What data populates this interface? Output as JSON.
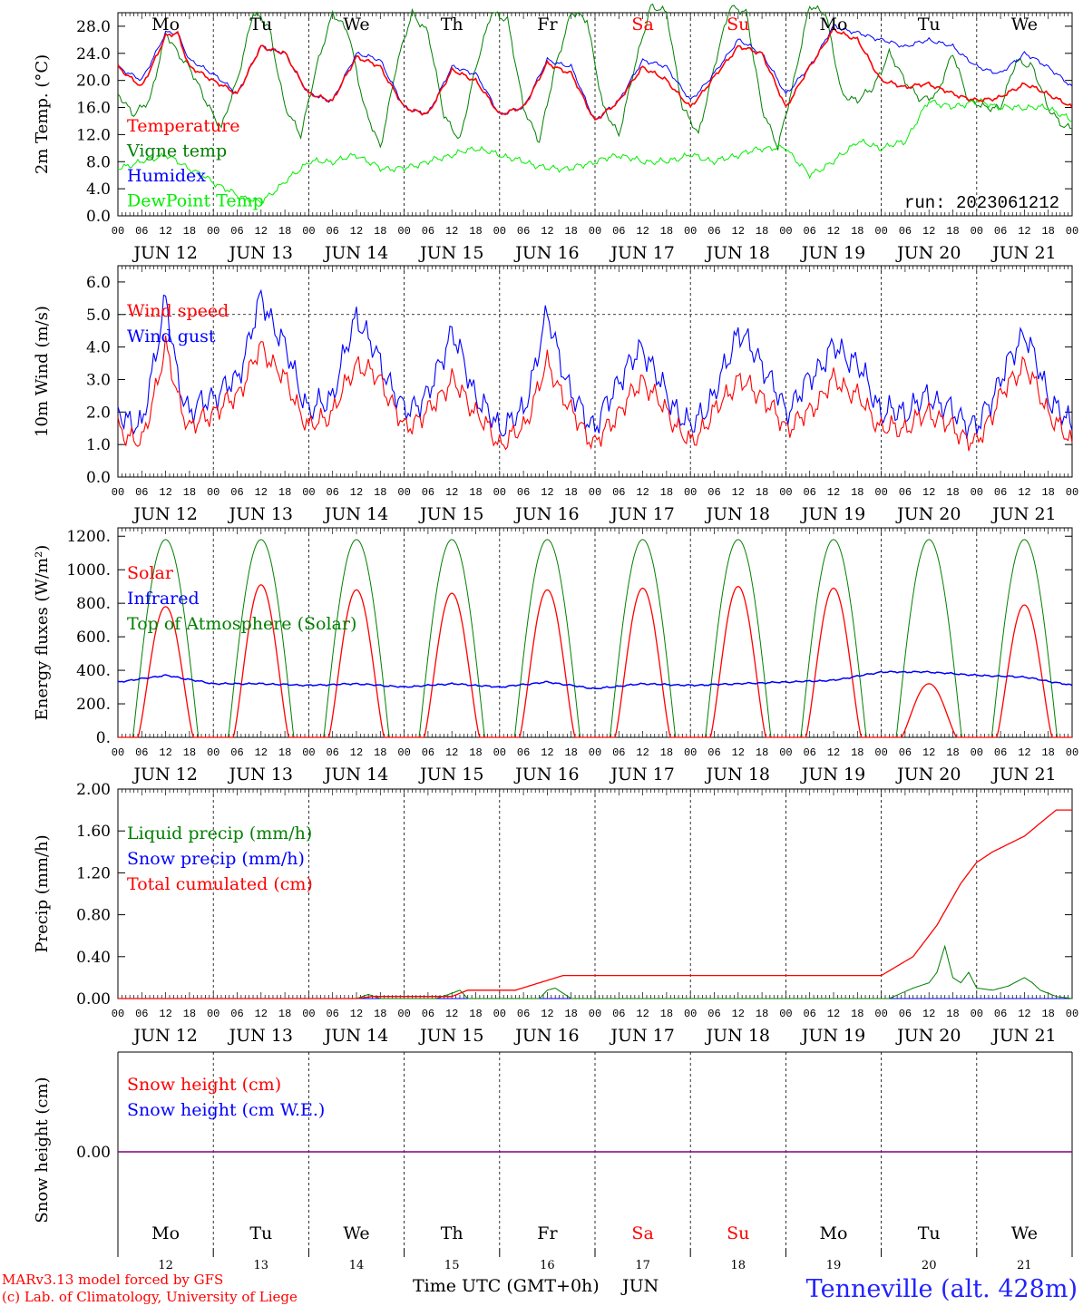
{
  "chart_data": [
    {
      "type": "line",
      "id": "temperature",
      "ylabel": "2m Temp. (°C)",
      "ylim": [
        0,
        30
      ],
      "yticks": [
        "0.0",
        "4.0",
        "8.0",
        "12.0",
        "16.0",
        "20.0",
        "24.0",
        "28.0"
      ],
      "yvalues": [
        0,
        4,
        8,
        12,
        16,
        20,
        24,
        28
      ],
      "run_label": "run: 2023061212",
      "series": [
        {
          "name": "Temperature",
          "color": "#ff0000",
          "x_hours": [
            0,
            6,
            12,
            15,
            18,
            24,
            30,
            36,
            42,
            48,
            54,
            60,
            66,
            72,
            78,
            84,
            90,
            96,
            102,
            108,
            114,
            120,
            126,
            132,
            138,
            144,
            150,
            156,
            162,
            168,
            174,
            180,
            186,
            192,
            198,
            204,
            210,
            216,
            222,
            228,
            234,
            240
          ],
          "values": [
            22,
            19,
            26.5,
            27,
            22,
            20,
            18,
            25,
            24,
            18,
            17,
            23.5,
            22,
            16,
            15,
            21.5,
            20,
            15,
            16,
            22.5,
            21,
            14,
            17,
            22,
            20,
            16,
            20.5,
            25,
            24,
            16,
            22,
            27.5,
            26,
            20,
            19,
            19.5,
            18,
            17,
            17.5,
            19.5,
            18,
            16
          ]
        },
        {
          "name": "Vigne temp",
          "color": "#008000",
          "x_hours": [
            0,
            4,
            8,
            12,
            15,
            18,
            22,
            26,
            30,
            34,
            38,
            42,
            46,
            50,
            54,
            58,
            62,
            66,
            70,
            74,
            78,
            82,
            86,
            90,
            94,
            98,
            102,
            106,
            110,
            114,
            118,
            122,
            126,
            130,
            134,
            138,
            142,
            146,
            150,
            154,
            158,
            162,
            166,
            170,
            174,
            178,
            182,
            186,
            190,
            194,
            198,
            202,
            206,
            210,
            214,
            218,
            222,
            226,
            230,
            234,
            238,
            240
          ],
          "values": [
            18,
            15,
            17,
            27,
            24,
            22,
            17,
            13,
            20,
            30,
            28,
            16,
            12,
            22,
            30,
            27,
            16,
            10,
            22,
            30,
            27,
            15,
            11,
            22,
            30,
            29,
            16,
            11,
            22,
            30,
            29,
            16,
            12,
            22,
            31,
            30,
            16,
            12,
            22,
            31,
            30,
            16,
            10,
            20,
            31,
            30,
            18,
            17,
            19,
            24,
            20,
            17,
            18,
            24,
            17,
            16,
            16,
            23,
            22,
            16,
            13,
            13
          ]
        },
        {
          "name": "Humidex",
          "color": "#0000ff",
          "x_hours": [
            0,
            6,
            12,
            15,
            18,
            24,
            30,
            36,
            42,
            48,
            54,
            60,
            66,
            72,
            78,
            84,
            90,
            96,
            102,
            108,
            114,
            120,
            126,
            132,
            138,
            144,
            150,
            156,
            162,
            168,
            174,
            180,
            186,
            192,
            198,
            204,
            210,
            216,
            222,
            228,
            234,
            240
          ],
          "values": [
            22,
            20,
            27,
            27,
            23,
            21,
            18,
            25,
            24,
            18,
            17,
            24,
            23,
            16,
            15,
            22,
            21,
            15,
            16,
            23,
            22,
            14,
            17,
            23,
            22,
            17,
            21,
            26,
            24,
            18,
            22,
            28,
            27,
            26,
            25,
            26,
            25,
            22,
            21,
            24,
            22,
            19
          ]
        },
        {
          "name": "DewPoint Temp",
          "color": "#00ee00",
          "x_hours": [
            0,
            6,
            12,
            18,
            24,
            30,
            36,
            42,
            48,
            54,
            60,
            66,
            72,
            78,
            84,
            90,
            96,
            102,
            108,
            114,
            120,
            126,
            132,
            138,
            144,
            150,
            156,
            162,
            168,
            174,
            180,
            186,
            192,
            198,
            204,
            210,
            216,
            222,
            228,
            234,
            240
          ],
          "values": [
            7,
            8,
            9,
            7,
            5,
            3,
            2,
            5,
            8,
            8,
            9,
            7,
            7,
            8,
            9,
            10,
            9,
            8,
            7,
            7,
            8,
            9,
            8,
            8,
            9,
            8,
            9,
            10,
            10,
            6,
            8,
            11,
            10,
            11,
            17,
            16,
            17,
            16,
            16,
            16,
            14
          ]
        }
      ]
    },
    {
      "type": "line",
      "id": "wind",
      "ylabel": "10m Wind (m/s)",
      "ylim": [
        0,
        6.5
      ],
      "yticks": [
        "0.0",
        "1.0",
        "2.0",
        "3.0",
        "4.0",
        "5.0",
        "6.0"
      ],
      "yvalues": [
        0,
        1,
        2,
        3,
        4,
        5,
        6
      ],
      "reference_line": 5.0,
      "series": [
        {
          "name": "Wind speed",
          "color": "#ff0000",
          "x_hours": [
            0,
            6,
            12,
            15,
            18,
            24,
            30,
            36,
            42,
            48,
            54,
            60,
            66,
            72,
            78,
            84,
            90,
            96,
            102,
            108,
            114,
            120,
            126,
            132,
            138,
            144,
            150,
            156,
            162,
            168,
            174,
            180,
            186,
            192,
            198,
            204,
            210,
            216,
            222,
            228,
            234,
            240
          ],
          "values": [
            1.5,
            1.0,
            4.0,
            2.5,
            1.5,
            2.0,
            2.5,
            4.0,
            3.0,
            1.5,
            2.0,
            3.5,
            3.0,
            1.5,
            2.0,
            3.0,
            2.0,
            1.0,
            1.5,
            3.5,
            2.0,
            1.0,
            2.0,
            3.0,
            2.0,
            1.0,
            2.0,
            3.0,
            2.5,
            1.5,
            2.0,
            3.0,
            2.5,
            1.5,
            1.5,
            2.0,
            1.5,
            1.0,
            2.5,
            3.5,
            2.0,
            1.0
          ]
        },
        {
          "name": "Wind gust",
          "color": "#0000ff",
          "x_hours": [
            0,
            6,
            12,
            15,
            18,
            24,
            30,
            36,
            42,
            48,
            54,
            60,
            66,
            72,
            78,
            84,
            90,
            96,
            102,
            108,
            114,
            120,
            126,
            132,
            138,
            144,
            150,
            156,
            162,
            168,
            174,
            180,
            186,
            192,
            198,
            204,
            210,
            216,
            222,
            228,
            234,
            240
          ],
          "values": [
            2.0,
            1.5,
            5.5,
            3.0,
            2.0,
            2.5,
            3.0,
            5.5,
            4.0,
            2.0,
            2.5,
            5.0,
            3.5,
            2.0,
            2.5,
            4.5,
            2.5,
            1.5,
            2.0,
            5.0,
            2.5,
            1.5,
            3.0,
            4.0,
            2.5,
            1.5,
            2.5,
            4.5,
            3.5,
            2.0,
            3.0,
            4.0,
            3.5,
            2.0,
            2.0,
            2.5,
            2.0,
            1.5,
            3.0,
            4.5,
            2.5,
            1.5
          ]
        }
      ]
    },
    {
      "type": "line",
      "id": "energy",
      "ylabel": "Energy fluxes (W/m²)",
      "ylim": [
        0,
        1250
      ],
      "yticks": [
        "0.",
        "200.",
        "400.",
        "600.",
        "800.",
        "1000.",
        "1200."
      ],
      "yvalues": [
        0,
        200,
        400,
        600,
        800,
        1000,
        1200
      ],
      "series": [
        {
          "name": "Solar",
          "color": "#ff0000",
          "daily_peaks": [
            780,
            910,
            880,
            860,
            880,
            890,
            900,
            890,
            320,
            790
          ]
        },
        {
          "name": "Infrared",
          "color": "#0000ff",
          "x_hours": [
            0,
            12,
            24,
            36,
            48,
            60,
            72,
            84,
            96,
            108,
            120,
            132,
            144,
            156,
            168,
            180,
            192,
            204,
            216,
            228,
            240
          ],
          "values": [
            330,
            370,
            320,
            320,
            310,
            320,
            300,
            320,
            300,
            330,
            290,
            320,
            310,
            320,
            330,
            340,
            390,
            390,
            370,
            360,
            310
          ]
        },
        {
          "name": "Top of Atmosphere (Solar)",
          "color": "#008000",
          "daily_peak": 1180
        }
      ]
    },
    {
      "type": "line",
      "id": "precip",
      "ylabel": "Precip (mm/h)",
      "ylim": [
        0,
        2.0
      ],
      "yticks": [
        "0.00",
        "0.40",
        "0.80",
        "1.20",
        "1.60",
        "2.00"
      ],
      "yvalues": [
        0,
        0.4,
        0.8,
        1.2,
        1.6,
        2.0
      ],
      "series": [
        {
          "name": "Liquid precip (mm/h)",
          "color": "#008000",
          "x_hours": [
            0,
            60,
            63,
            66,
            80,
            84,
            86,
            88,
            106,
            108,
            110,
            112,
            114,
            190,
            194,
            200,
            204,
            206,
            208,
            210,
            212,
            214,
            216,
            220,
            224,
            228,
            230,
            232,
            236,
            240
          ],
          "values": [
            0,
            0,
            0.04,
            0,
            0,
            0.05,
            0.08,
            0,
            0,
            0.08,
            0.1,
            0.05,
            0,
            0,
            0,
            0.1,
            0.15,
            0.25,
            0.5,
            0.2,
            0.15,
            0.25,
            0.1,
            0.08,
            0.12,
            0.2,
            0.15,
            0.08,
            0.02,
            0
          ]
        },
        {
          "name": "Snow precip (mm/h)",
          "color": "#0000ff",
          "x_hours": [
            0,
            240
          ],
          "values": [
            0,
            0
          ]
        },
        {
          "name": "Total cumulated (cm)",
          "color": "#ff0000",
          "x_hours": [
            0,
            60,
            64,
            84,
            88,
            100,
            106,
            112,
            120,
            180,
            192,
            200,
            206,
            212,
            216,
            220,
            228,
            236,
            240
          ],
          "values": [
            0,
            0,
            0.02,
            0.02,
            0.08,
            0.08,
            0.15,
            0.22,
            0.22,
            0.22,
            0.22,
            0.4,
            0.7,
            1.1,
            1.3,
            1.4,
            1.55,
            1.8,
            1.8
          ]
        }
      ]
    },
    {
      "type": "line",
      "id": "snow",
      "ylabel": "Snow height (cm)",
      "yticks": [
        "0.00"
      ],
      "series": [
        {
          "name": "Snow height (cm)",
          "color": "#ff0000",
          "values": [
            0,
            0
          ]
        },
        {
          "name": "Snow height (cm W.E.)",
          "color": "#0000ff",
          "values": [
            0,
            0
          ]
        }
      ]
    }
  ],
  "x_axis": {
    "hour_ticks": [
      "00",
      "06",
      "12",
      "18"
    ],
    "final_tick": "00",
    "dates": [
      "JUN 12",
      "JUN 13",
      "JUN 14",
      "JUN 15",
      "JUN 16",
      "JUN 17",
      "JUN 18",
      "JUN 19",
      "JUN 20",
      "JUN 21"
    ],
    "weekdays": [
      "Mo",
      "Tu",
      "We",
      "Th",
      "Fr",
      "Sa",
      "Su",
      "Mo",
      "Tu",
      "We"
    ],
    "weekend_flags": [
      false,
      false,
      false,
      false,
      false,
      true,
      true,
      false,
      false,
      false
    ],
    "day_numbers": [
      "12",
      "13",
      "14",
      "15",
      "16",
      "17",
      "18",
      "19",
      "20",
      "21"
    ],
    "title": "Time UTC (GMT+0h)",
    "month": "JUN"
  },
  "footer": {
    "credit_line1": "MARv3.13 model forced by GFS",
    "credit_line2": "(c) Lab. of Climatology, University of Liege",
    "station": "Tenneville (alt. 428m)"
  },
  "colors": {
    "weekend": "#ff0000",
    "weekday": "#000000",
    "station": "#2222ff",
    "snow_line": "#800080"
  }
}
